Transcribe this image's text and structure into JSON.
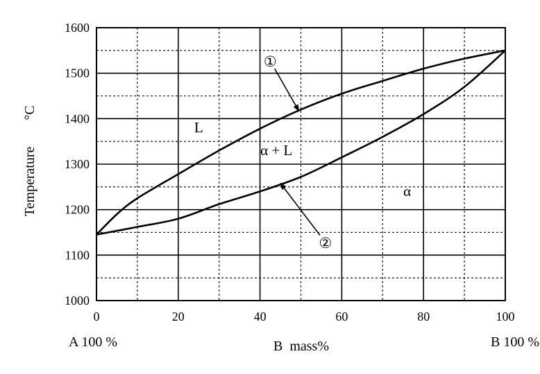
{
  "chart_data": {
    "type": "line",
    "title": "",
    "xlabel": "B  mass%",
    "ylabel": "Temperature",
    "ylabel_unit": "°C",
    "xlim": [
      0,
      100
    ],
    "ylim": [
      1000,
      1600
    ],
    "x_ticks": [
      0,
      20,
      40,
      60,
      80,
      100
    ],
    "y_ticks": [
      1000,
      1100,
      1200,
      1300,
      1400,
      1500,
      1600
    ],
    "grid": true,
    "end_labels": {
      "left": "A 100 %",
      "right": "B 100 %"
    },
    "series": [
      {
        "name": "①",
        "x": [
          0,
          5,
          10,
          20,
          30,
          40,
          50,
          60,
          70,
          80,
          90,
          100
        ],
        "y": [
          1145,
          1190,
          1225,
          1278,
          1330,
          1378,
          1420,
          1455,
          1483,
          1510,
          1532,
          1550
        ]
      },
      {
        "name": "②",
        "x": [
          0,
          10,
          20,
          30,
          40,
          50,
          60,
          70,
          80,
          90,
          100
        ],
        "y": [
          1145,
          1162,
          1180,
          1212,
          1240,
          1272,
          1315,
          1360,
          1410,
          1470,
          1550
        ]
      }
    ],
    "annotations": [
      {
        "text": "L",
        "x": 25,
        "y": 1370
      },
      {
        "text": "α + L",
        "x": 44,
        "y": 1320
      },
      {
        "text": "α",
        "x": 76,
        "y": 1230
      }
    ],
    "callouts": [
      {
        "label": "①",
        "label_x": 42.5,
        "label_y": 1527,
        "point_x": 49.5,
        "point_y": 1417
      },
      {
        "label": "②",
        "label_x": 56,
        "label_y": 1128,
        "point_x": 45,
        "point_y": 1258
      }
    ]
  }
}
